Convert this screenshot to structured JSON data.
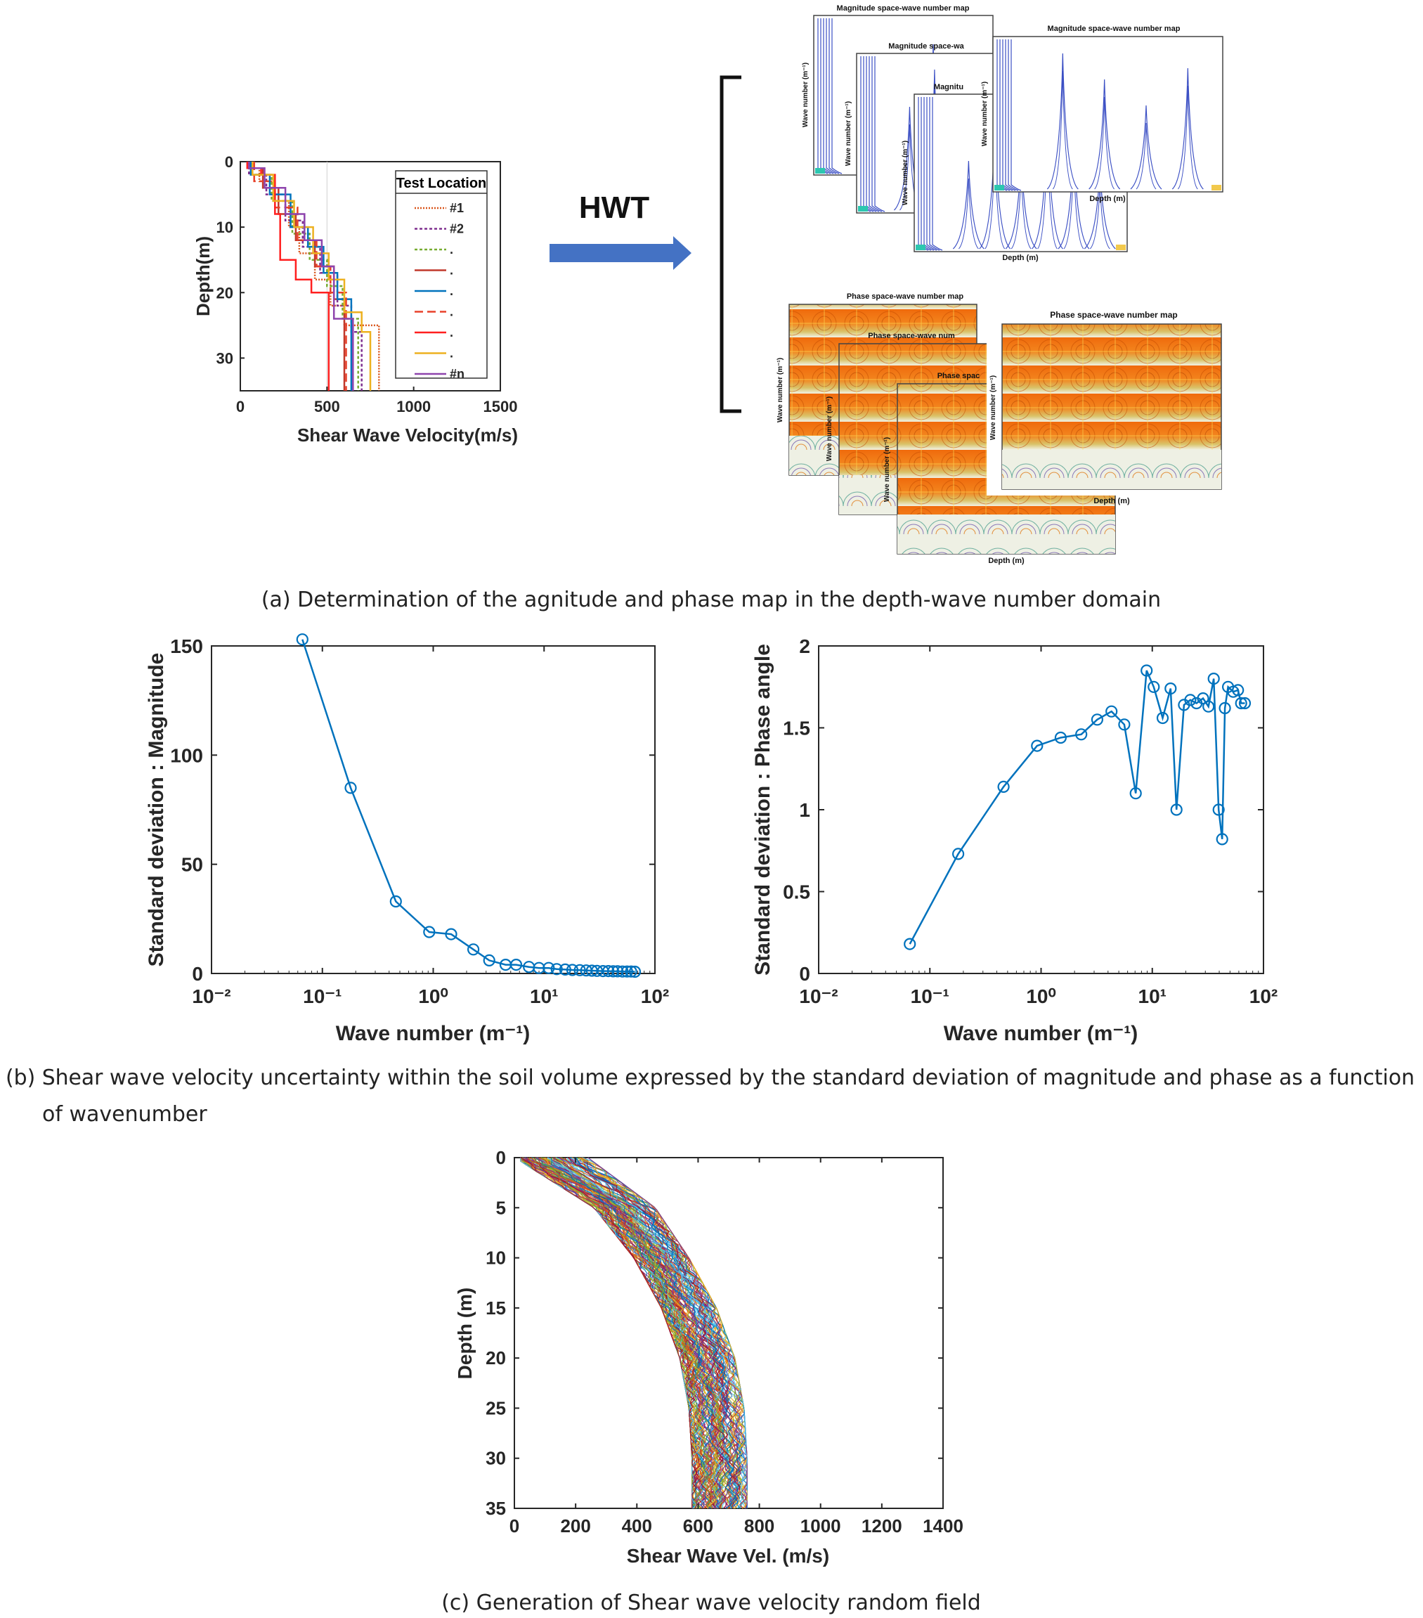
{
  "captions": {
    "a": "(a) Determination of the agnitude and phase map in the depth-wave number domain",
    "b_line1": "(b) Shear wave velocity uncertainty within the soil volume expressed by the standard deviation of magnitude and phase as a function",
    "b_line2": "of wavenumber",
    "c": "(c) Generation of Shear wave velocity random field"
  },
  "arrow": {
    "label": "HWT",
    "color": "#4472c4"
  },
  "maps": {
    "magnitude_titles": [
      "Magnitude space-wave number map",
      "Magnitude space-wa",
      "Magnitu",
      "Magnitude space-wave number map"
    ],
    "phase_titles": [
      "Phase space-wave number map",
      "Phase space-wave num",
      "Phase spac",
      "Phase space-wave number map"
    ],
    "ylabel": "Wave number (m⁻¹)",
    "xlabel": "Depth (m)",
    "magnitude_color": "#3b4fc4",
    "phase_color": "#e86a10"
  },
  "chart_data": [
    {
      "id": "a-profiles",
      "type": "line",
      "xlabel": "Shear Wave Velocity(m/s)",
      "ylabel": "Depth(m)",
      "xlim": [
        0,
        1500
      ],
      "ylim": [
        0,
        35
      ],
      "y_reversed": true,
      "xticks": [
        "0",
        "500",
        "1000",
        "1500"
      ],
      "yticks": [
        "0",
        "10",
        "20",
        "30"
      ],
      "legend": {
        "title": "Test Location",
        "position": "right",
        "entries": [
          "#1",
          "#2",
          ".",
          ".",
          ".",
          ".",
          ".",
          ".",
          "#n"
        ]
      },
      "series": [
        {
          "name": "#1",
          "color": "#d95319",
          "dash": "2,2",
          "points": [
            [
              60,
              0
            ],
            [
              60,
              1
            ],
            [
              110,
              1
            ],
            [
              110,
              3
            ],
            [
              200,
              3
            ],
            [
              200,
              6
            ],
            [
              280,
              6
            ],
            [
              280,
              10
            ],
            [
              340,
              10
            ],
            [
              340,
              14
            ],
            [
              430,
              14
            ],
            [
              430,
              18
            ],
            [
              520,
              18
            ],
            [
              520,
              22
            ],
            [
              600,
              22
            ],
            [
              600,
              25
            ],
            [
              800,
              25
            ],
            [
              800,
              35
            ]
          ]
        },
        {
          "name": "#2",
          "color": "#7e2f8e",
          "dash": "4,3",
          "points": [
            [
              50,
              0
            ],
            [
              50,
              2
            ],
            [
              150,
              2
            ],
            [
              150,
              5
            ],
            [
              260,
              5
            ],
            [
              260,
              9
            ],
            [
              360,
              9
            ],
            [
              360,
              13
            ],
            [
              460,
              13
            ],
            [
              460,
              17
            ],
            [
              560,
              17
            ],
            [
              560,
              22
            ],
            [
              640,
              22
            ],
            [
              640,
              26
            ],
            [
              700,
              26
            ],
            [
              700,
              35
            ]
          ]
        },
        {
          "name": ".",
          "color": "#77ac30",
          "dash": "4,3",
          "points": [
            [
              70,
              0
            ],
            [
              70,
              2
            ],
            [
              180,
              2
            ],
            [
              180,
              6
            ],
            [
              300,
              6
            ],
            [
              300,
              11
            ],
            [
              400,
              11
            ],
            [
              400,
              15
            ],
            [
              500,
              15
            ],
            [
              500,
              19
            ],
            [
              590,
              19
            ],
            [
              590,
              24
            ],
            [
              680,
              24
            ],
            [
              680,
              35
            ]
          ]
        },
        {
          "name": ".",
          "color": "#c0392b",
          "dash": "",
          "points": [
            [
              40,
              0
            ],
            [
              40,
              1
            ],
            [
              130,
              1
            ],
            [
              130,
              4
            ],
            [
              220,
              4
            ],
            [
              220,
              8
            ],
            [
              320,
              8
            ],
            [
              320,
              12
            ],
            [
              430,
              12
            ],
            [
              430,
              16
            ],
            [
              540,
              16
            ],
            [
              540,
              21
            ],
            [
              600,
              21
            ],
            [
              600,
              35
            ]
          ]
        },
        {
          "name": ".",
          "color": "#0072bd",
          "dash": "",
          "points": [
            [
              60,
              0
            ],
            [
              60,
              2
            ],
            [
              170,
              2
            ],
            [
              170,
              5
            ],
            [
              290,
              5
            ],
            [
              290,
              10
            ],
            [
              390,
              10
            ],
            [
              390,
              13
            ],
            [
              480,
              13
            ],
            [
              480,
              17
            ],
            [
              560,
              17
            ],
            [
              560,
              21
            ],
            [
              640,
              21
            ],
            [
              640,
              35
            ]
          ]
        },
        {
          "name": ".",
          "color": "#e8402a",
          "dash": "12,6",
          "points": [
            [
              80,
              0
            ],
            [
              80,
              3
            ],
            [
              200,
              3
            ],
            [
              200,
              7
            ],
            [
              330,
              7
            ],
            [
              330,
              12
            ],
            [
              440,
              12
            ],
            [
              440,
              16
            ],
            [
              520,
              16
            ],
            [
              520,
              20
            ],
            [
              610,
              20
            ],
            [
              610,
              35
            ]
          ]
        },
        {
          "name": ".",
          "color": "#ff1f1f",
          "dash": "",
          "points": [
            [
              40,
              0
            ],
            [
              40,
              1
            ],
            [
              120,
              1
            ],
            [
              120,
              2
            ],
            [
              200,
              2
            ],
            [
              200,
              8
            ],
            [
              230,
              8
            ],
            [
              230,
              15
            ],
            [
              320,
              15
            ],
            [
              320,
              18
            ],
            [
              410,
              18
            ],
            [
              410,
              20
            ],
            [
              510,
              20
            ],
            [
              510,
              35
            ]
          ]
        },
        {
          "name": ".",
          "color": "#edb120",
          "dash": "",
          "points": [
            [
              70,
              0
            ],
            [
              70,
              2
            ],
            [
              190,
              2
            ],
            [
              190,
              6
            ],
            [
              310,
              6
            ],
            [
              310,
              10
            ],
            [
              420,
              10
            ],
            [
              420,
              14
            ],
            [
              510,
              14
            ],
            [
              510,
              18
            ],
            [
              600,
              18
            ],
            [
              600,
              23
            ],
            [
              700,
              23
            ],
            [
              700,
              26
            ],
            [
              750,
              26
            ],
            [
              750,
              35
            ]
          ]
        },
        {
          "name": "#n",
          "color": "#8e44ad",
          "dash": "",
          "points": [
            [
              50,
              0
            ],
            [
              50,
              1
            ],
            [
              140,
              1
            ],
            [
              140,
              4
            ],
            [
              260,
              4
            ],
            [
              260,
              8
            ],
            [
              370,
              8
            ],
            [
              370,
              12
            ],
            [
              470,
              12
            ],
            [
              470,
              16
            ],
            [
              540,
              16
            ],
            [
              540,
              24
            ],
            [
              650,
              24
            ],
            [
              650,
              35
            ]
          ]
        }
      ]
    },
    {
      "id": "b-magnitude",
      "type": "line",
      "xscale": "log",
      "xlabel": "Wave number (m⁻¹)",
      "ylabel": "Standard deviation : Magnitude",
      "xlim": [
        0.01,
        100
      ],
      "ylim": [
        0,
        150
      ],
      "xticks": [
        "10⁻²",
        "10⁻¹",
        "10⁰",
        "10¹",
        "10²"
      ],
      "yticks": [
        "0",
        "50",
        "100",
        "150"
      ],
      "color": "#0072bd",
      "marker": "circle",
      "x": [
        0.066,
        0.18,
        0.46,
        0.92,
        1.45,
        2.3,
        3.2,
        4.5,
        5.6,
        7.3,
        9.0,
        11.0,
        13.0,
        15.5,
        18.0,
        21.0,
        24.0,
        27.0,
        30.0,
        34.0,
        38.0,
        42.0,
        46.0,
        51.0,
        56.0,
        61.0,
        66.0
      ],
      "y": [
        153,
        85,
        33,
        19,
        18,
        11,
        6,
        4,
        4,
        3,
        2.5,
        2.5,
        2,
        1.8,
        1.6,
        1.5,
        1.4,
        1.3,
        1.2,
        1.1,
        1.1,
        1.0,
        1.0,
        0.9,
        0.9,
        0.9,
        0.8
      ]
    },
    {
      "id": "b-phase",
      "type": "line",
      "xscale": "log",
      "xlabel": "Wave number (m⁻¹)",
      "ylabel": "Standard deviation : Phase angle",
      "xlim": [
        0.01,
        100
      ],
      "ylim": [
        0,
        2
      ],
      "xticks": [
        "10⁻²",
        "10⁻¹",
        "10⁰",
        "10¹",
        "10²"
      ],
      "yticks": [
        "0",
        "0.5",
        "1",
        "1.5",
        "2"
      ],
      "color": "#0072bd",
      "marker": "circle",
      "x": [
        0.066,
        0.18,
        0.46,
        0.92,
        1.5,
        2.3,
        3.2,
        4.3,
        5.6,
        7.1,
        8.9,
        10.3,
        12.4,
        14.6,
        16.5,
        19.3,
        22.0,
        25.0,
        28.6,
        32.0,
        35.7,
        39.5,
        42.5,
        45.0,
        48.0,
        53.5,
        59.0,
        63.0,
        68.0
      ],
      "y": [
        0.18,
        0.73,
        1.14,
        1.39,
        1.44,
        1.46,
        1.55,
        1.6,
        1.52,
        1.1,
        1.85,
        1.75,
        1.56,
        1.74,
        1.0,
        1.64,
        1.67,
        1.65,
        1.68,
        1.63,
        1.8,
        1.0,
        0.82,
        1.62,
        1.75,
        1.72,
        1.73,
        1.65,
        1.65
      ]
    },
    {
      "id": "c-random-field",
      "type": "line",
      "xlabel": "Shear Wave Vel. (m/s)",
      "ylabel": "Depth (m)",
      "xlim": [
        0,
        1400
      ],
      "ylim": [
        0,
        35
      ],
      "y_reversed": true,
      "xticks": [
        "0",
        "200",
        "400",
        "600",
        "800",
        "1000",
        "1200",
        "1400"
      ],
      "yticks": [
        "0",
        "5",
        "10",
        "15",
        "20",
        "25",
        "30",
        "35"
      ],
      "mean_profile": {
        "depth": [
          0,
          5,
          10,
          15,
          20,
          25,
          30,
          35
        ],
        "velocity": [
          120,
          360,
          480,
          570,
          630,
          660,
          670,
          670
        ]
      },
      "band_halfwidth": [
        120,
        100,
        90,
        90,
        90,
        90,
        90,
        90
      ],
      "realizations": 120,
      "colors": [
        "#0072bd",
        "#d95319",
        "#edb120",
        "#7e2f8e",
        "#77ac30",
        "#4dbeee",
        "#a2142f"
      ]
    }
  ]
}
